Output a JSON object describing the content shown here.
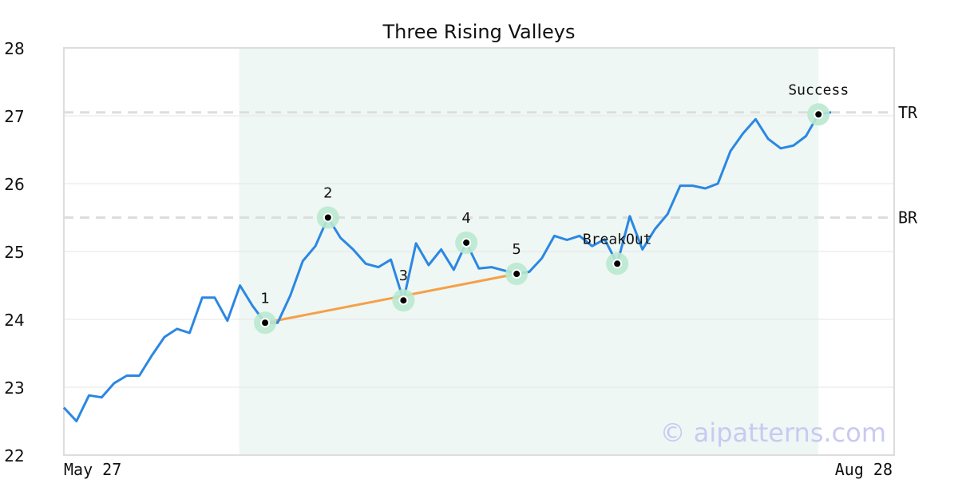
{
  "chart_data": {
    "type": "line",
    "title": "Three Rising Valleys",
    "xlabel": "",
    "ylabel": "",
    "x_tick_labels": [
      "May 27",
      "Aug 28"
    ],
    "ylim": [
      22,
      28
    ],
    "y_ticks": [
      22,
      23,
      24,
      25,
      26,
      27,
      28
    ],
    "grid": "horizontal",
    "series": [
      {
        "values": [
          22.7,
          22.5,
          22.88,
          22.85,
          23.06,
          23.17,
          23.17,
          23.47,
          23.74,
          23.86,
          23.8,
          24.32,
          24.32,
          23.98,
          24.5,
          24.2,
          23.95,
          23.95,
          24.35,
          24.86,
          25.08,
          25.5,
          25.2,
          25.03,
          24.82,
          24.77,
          24.88,
          24.28,
          25.12,
          24.8,
          25.03,
          24.73,
          25.13,
          24.75,
          24.77,
          24.72,
          24.67,
          24.7,
          24.9,
          25.23,
          25.17,
          25.23,
          25.08,
          25.18,
          24.82,
          25.52,
          25.03,
          25.33,
          25.55,
          25.97,
          25.97,
          25.93,
          26.0,
          26.48,
          26.74,
          26.95,
          26.66,
          26.52,
          26.56,
          26.7,
          27.02,
          27.05
        ]
      }
    ],
    "pattern_window": {
      "start_index": 14,
      "end_index": 60
    },
    "pattern_points": [
      {
        "label": "1",
        "index": 16,
        "value": 23.95
      },
      {
        "label": "2",
        "index": 21,
        "value": 25.5
      },
      {
        "label": "3",
        "index": 27,
        "value": 24.28
      },
      {
        "label": "4",
        "index": 32,
        "value": 25.13
      },
      {
        "label": "5",
        "index": 36,
        "value": 24.67
      },
      {
        "label": "BreakOut",
        "index": 44,
        "value": 24.82
      },
      {
        "label": "Success",
        "index": 60,
        "value": 27.02
      }
    ],
    "trend_line": {
      "from_index": 16,
      "from_value": 23.95,
      "to_index": 36,
      "to_value": 24.67
    },
    "reference_lines": [
      {
        "label": "TR",
        "value": 27.05
      },
      {
        "label": "BR",
        "value": 25.5
      }
    ],
    "watermark": "© aipatterns.com",
    "colors": {
      "line": "#2b87e3",
      "trend": "#f5a04a",
      "marker_halo": "#b9e8cf",
      "window_fill": "#eef7f3",
      "reference": "#dddddd",
      "watermark": "#c9c9f2",
      "frame": "#dddddd"
    }
  }
}
